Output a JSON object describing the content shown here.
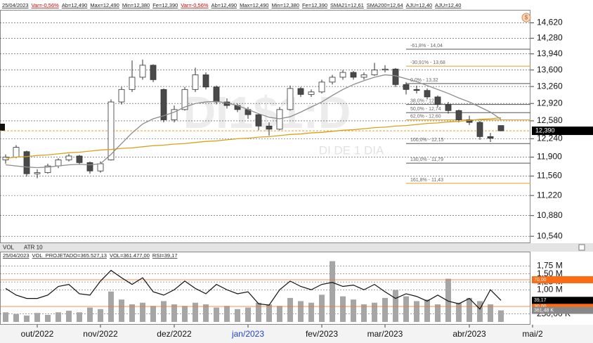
{
  "chart_data": {
    "type": "candlestick",
    "header": [
      {
        "text": "25/04/2023",
        "color": "#222"
      },
      {
        "text": "Var=-0,56%",
        "color": "#d00000"
      },
      {
        "text": "Ab=12,490",
        "color": "#222"
      },
      {
        "text": "Max=12,490",
        "color": "#222"
      },
      {
        "text": "Min=12,380",
        "color": "#222"
      },
      {
        "text": "Fe=12,390",
        "color": "#222"
      },
      {
        "text": "Var=-0,56%",
        "color": "#d00000"
      },
      {
        "text": "Ab=12,490",
        "color": "#222"
      },
      {
        "text": "Max=12,490",
        "color": "#222"
      },
      {
        "text": "Min=12,380",
        "color": "#222"
      },
      {
        "text": "Fe=12,390",
        "color": "#222"
      },
      {
        "text": "SMA21=12,61",
        "color": "#222"
      },
      {
        "text": "SMA200=12,64",
        "color": "#222"
      },
      {
        "text": "AJU=12,40",
        "color": "#222"
      },
      {
        "text": "AJU=12,40",
        "color": "#222"
      }
    ],
    "watermark": "DI1$1:D",
    "watermark_subtitle": "DI DE 1 DIA",
    "categories": [
      null,
      null,
      null,
      "out/2022",
      null,
      null,
      null,
      null,
      null,
      "nov/2022",
      null,
      null,
      null,
      null,
      null,
      null,
      "dez/2022",
      null,
      null,
      null,
      null,
      null,
      null,
      "jan/2023",
      null,
      null,
      null,
      null,
      null,
      null,
      "fev/2023",
      null,
      null,
      null,
      null,
      null,
      "mar/2023",
      null,
      null,
      null,
      null,
      null,
      null,
      null,
      "abr/2023",
      null,
      null,
      null,
      null,
      null,
      "mai/2",
      null
    ],
    "highlight_prefix": "jan",
    "highlight_color": "#1f45d0",
    "candles": [
      [
        11.85,
        11.95,
        11.78,
        11.9
      ],
      [
        11.9,
        12.12,
        11.88,
        12.08
      ],
      [
        12.0,
        12.02,
        11.55,
        11.6
      ],
      [
        11.6,
        11.68,
        11.52,
        11.62
      ],
      [
        11.62,
        11.78,
        11.6,
        11.74
      ],
      [
        11.74,
        11.88,
        11.7,
        11.85
      ],
      [
        11.85,
        11.96,
        11.82,
        11.92
      ],
      [
        11.92,
        11.94,
        11.76,
        11.8
      ],
      [
        11.8,
        11.82,
        11.6,
        11.65
      ],
      [
        11.65,
        11.82,
        11.62,
        11.78
      ],
      [
        11.85,
        13.0,
        11.84,
        12.95
      ],
      [
        12.95,
        13.25,
        12.9,
        13.2
      ],
      [
        13.2,
        13.8,
        13.15,
        13.45
      ],
      [
        13.45,
        13.82,
        13.4,
        13.7
      ],
      [
        13.7,
        13.72,
        13.35,
        13.4
      ],
      [
        13.2,
        13.22,
        12.55,
        12.6
      ],
      [
        12.6,
        12.88,
        12.55,
        12.8
      ],
      [
        12.8,
        13.25,
        12.78,
        13.2
      ],
      [
        13.2,
        13.65,
        13.15,
        13.5
      ],
      [
        13.5,
        13.55,
        13.2,
        13.25
      ],
      [
        13.25,
        13.28,
        12.9,
        12.95
      ],
      [
        12.95,
        13.02,
        12.82,
        12.88
      ],
      [
        12.88,
        12.92,
        12.75,
        12.8
      ],
      [
        12.8,
        12.85,
        12.62,
        12.7
      ],
      [
        12.7,
        12.72,
        12.4,
        12.48
      ],
      [
        12.48,
        12.55,
        12.3,
        12.42
      ],
      [
        12.42,
        12.85,
        12.4,
        12.8
      ],
      [
        12.8,
        13.28,
        12.78,
        13.22
      ],
      [
        13.22,
        13.25,
        13.05,
        13.1
      ],
      [
        13.1,
        13.2,
        13.05,
        13.15
      ],
      [
        13.15,
        13.4,
        13.12,
        13.35
      ],
      [
        13.35,
        13.5,
        13.3,
        13.45
      ],
      [
        13.45,
        13.6,
        13.4,
        13.55
      ],
      [
        13.55,
        13.58,
        13.4,
        13.45
      ],
      [
        13.45,
        13.55,
        13.4,
        13.5
      ],
      [
        13.5,
        13.75,
        13.48,
        13.6
      ],
      [
        13.6,
        13.7,
        13.55,
        13.62
      ],
      [
        13.62,
        13.64,
        13.25,
        13.3
      ],
      [
        13.3,
        13.35,
        13.1,
        13.2
      ],
      [
        13.2,
        13.28,
        13.12,
        13.18
      ],
      [
        13.18,
        13.22,
        13.0,
        13.05
      ],
      [
        13.05,
        13.08,
        12.85,
        12.9
      ],
      [
        12.9,
        12.95,
        12.72,
        12.78
      ],
      [
        12.78,
        12.8,
        12.55,
        12.6
      ],
      [
        12.6,
        12.68,
        12.5,
        12.55
      ],
      [
        12.55,
        12.58,
        12.22,
        12.28
      ],
      [
        12.28,
        12.35,
        12.18,
        12.25
      ],
      [
        12.49,
        12.49,
        12.38,
        12.39
      ],
      null,
      null,
      null,
      null
    ],
    "up_color": "#ffffff",
    "down_color": "#4a4a4a",
    "sma21": {
      "color": "#8c8c8c",
      "values": [
        11.76,
        11.74,
        11.72,
        11.71,
        11.72,
        11.74,
        11.76,
        11.77,
        11.76,
        11.78,
        11.95,
        12.15,
        12.35,
        12.52,
        12.62,
        12.68,
        12.75,
        12.85,
        12.92,
        12.95,
        12.96,
        12.93,
        12.88,
        12.8,
        12.72,
        12.65,
        12.62,
        12.66,
        12.75,
        12.85,
        12.95,
        13.08,
        13.2,
        13.3,
        13.38,
        13.45,
        13.5,
        13.48,
        13.42,
        13.36,
        13.28,
        13.2,
        13.12,
        13.03,
        12.95,
        12.85,
        12.75,
        12.61,
        null,
        null,
        null,
        null
      ]
    },
    "sma200": {
      "color": "#d9a21b",
      "values": [
        11.88,
        11.9,
        11.91,
        11.93,
        11.94,
        11.96,
        11.98,
        11.99,
        12.01,
        12.03,
        12.04,
        12.06,
        12.07,
        12.09,
        12.11,
        12.12,
        12.14,
        12.15,
        12.17,
        12.19,
        12.2,
        12.22,
        12.24,
        12.25,
        12.27,
        12.28,
        12.3,
        12.32,
        12.33,
        12.35,
        12.36,
        12.38,
        12.4,
        12.41,
        12.43,
        12.45,
        12.46,
        12.48,
        12.49,
        12.51,
        12.53,
        12.54,
        12.56,
        12.57,
        12.59,
        12.61,
        12.62,
        12.64,
        null,
        null,
        null,
        null
      ]
    },
    "fibonacci": [
      {
        "label": "-61,8% - 14,04",
        "value": 14.04,
        "color": "#555555"
      },
      {
        "label": "-30,91% - 13,68",
        "value": 13.68,
        "color": "#e0a020"
      },
      {
        "label": "0,0% - 13,32",
        "value": 13.32,
        "color": "#555555"
      },
      {
        "label": "38,0% - 12,90",
        "value": 12.9,
        "color": "#555555"
      },
      {
        "label": "50,0% - 12,74",
        "value": 12.74,
        "color": "#555555"
      },
      {
        "label": "62,0% - 12,60",
        "value": 12.6,
        "color": "#e0a020"
      },
      {
        "label": "100,0% - 12,15",
        "value": 12.15,
        "color": "#555555"
      },
      {
        "label": "130,0% - 11,79",
        "value": 11.79,
        "color": "#555555"
      },
      {
        "label": "161,8% - 11,43",
        "value": 11.43,
        "color": "#e0a020"
      }
    ],
    "last_price": {
      "value": 12.39,
      "label": "12,390",
      "color": "#e8a030"
    },
    "log_scale": true,
    "grid": true,
    "ylim": [
      10.44,
      14.85
    ],
    "yticks": [
      {
        "value": 14.62,
        "label": "14,620"
      },
      {
        "value": 14.28,
        "label": "14,280"
      },
      {
        "value": 13.94,
        "label": "13,940"
      },
      {
        "value": 13.6,
        "label": "13,600"
      },
      {
        "value": 13.26,
        "label": "13,260"
      },
      {
        "value": 12.92,
        "label": "12,920"
      },
      {
        "value": 12.58,
        "label": "12,580"
      },
      {
        "value": 12.24,
        "label": "12,240"
      },
      {
        "value": 11.9,
        "label": "11,900"
      },
      {
        "value": 11.56,
        "label": "11,560"
      },
      {
        "value": 11.22,
        "label": "11,220"
      },
      {
        "value": 10.88,
        "label": "10,880"
      },
      {
        "value": 10.54,
        "label": "10,540"
      }
    ],
    "lower_panel": {
      "tabs": [
        "VOL",
        "ATR 10"
      ],
      "info": [
        "25/04/2023",
        "VOL_PROJETADO=365.527,13",
        "VOL=361.477,00",
        "RSI=39,17"
      ],
      "volume": {
        "color": "#a6a6a6",
        "values": [
          300000,
          250000,
          200000,
          280000,
          220000,
          300000,
          350000,
          300000,
          450000,
          400000,
          950000,
          700000,
          550000,
          600000,
          500000,
          650000,
          550000,
          500000,
          600000,
          550000,
          450000,
          500000,
          400000,
          450000,
          600000,
          550000,
          500000,
          750000,
          650000,
          600000,
          850000,
          1900000,
          800000,
          700000,
          550000,
          600000,
          750000,
          1000000,
          800000,
          650000,
          700000,
          550000,
          1350000,
          600000,
          750000,
          650000,
          550000,
          361477,
          null,
          null,
          null,
          null
        ],
        "last_label": "361,48 K"
      },
      "ylim": [
        0,
        2000000
      ],
      "yticks": [
        {
          "value": 250000,
          "label": "250,00 K"
        },
        {
          "value": 1000000,
          "label": "1,00 M"
        },
        {
          "value": 1250000,
          "label": "1,25 M"
        },
        {
          "value": 1500000,
          "label": "1,50 M"
        },
        {
          "value": 1750000,
          "label": "1,75 M"
        }
      ],
      "rsi": {
        "color": "#111111",
        "ylim": [
          0,
          100
        ],
        "values": [
          57,
          47,
          42,
          42,
          47,
          60,
          63,
          49,
          47,
          68,
          84,
          73,
          63,
          73,
          52,
          47,
          55,
          68,
          57,
          49,
          63,
          55,
          49,
          52,
          34,
          32,
          55,
          68,
          60,
          55,
          63,
          66,
          60,
          62,
          55,
          63,
          52,
          42,
          49,
          45,
          38,
          47,
          38,
          34,
          42,
          26,
          55,
          39.17,
          null,
          null,
          null,
          null
        ],
        "last_label": "39,17",
        "levels": [
          {
            "value": 70,
            "label": "70,00",
            "color": "#ff6a14"
          },
          {
            "value": 30,
            "label": "30,00",
            "color": "#ff6a14"
          }
        ]
      }
    }
  }
}
